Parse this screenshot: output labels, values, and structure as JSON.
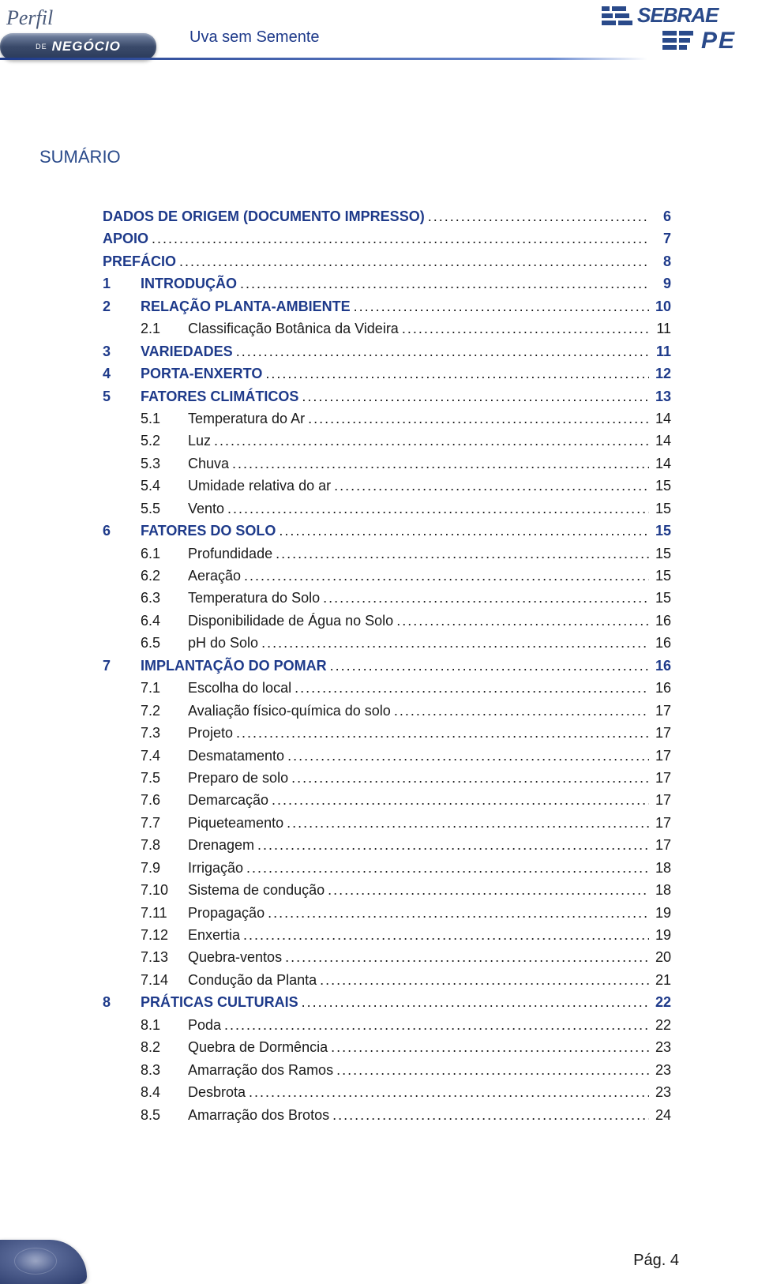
{
  "header": {
    "perfil": "Perfil",
    "de": "DE",
    "negocio": "NEGÓCIO",
    "subtitle": "Uva sem Semente",
    "sebrae": "SEBRAE",
    "pe": "PE"
  },
  "colors": {
    "brand_blue": "#1e3a8a",
    "text": "#1a1a1a",
    "badge_grad_top": "#7a8aa8",
    "badge_grad_bottom": "#2a3a5a"
  },
  "section_title": "SUMÁRIO",
  "toc": [
    {
      "level": 0,
      "num": "",
      "label": "DADOS DE ORIGEM (DOCUMENTO IMPRESSO)",
      "page": "6"
    },
    {
      "level": 0,
      "num": "",
      "label": "APOIO",
      "page": "7"
    },
    {
      "level": 0,
      "num": "",
      "label": "PREFÁCIO",
      "page": "8"
    },
    {
      "level": 1,
      "num": "1",
      "label": "INTRODUÇÃO",
      "page": "9"
    },
    {
      "level": 1,
      "num": "2",
      "label": "RELAÇÃO PLANTA-AMBIENTE",
      "page": "10"
    },
    {
      "level": 2,
      "num": "2.1",
      "label": "Classificação Botânica da Videira",
      "page": "11"
    },
    {
      "level": 1,
      "num": "3",
      "label": "VARIEDADES",
      "page": "11"
    },
    {
      "level": 1,
      "num": "4",
      "label": "PORTA-ENXERTO",
      "page": "12"
    },
    {
      "level": 1,
      "num": "5",
      "label": "FATORES CLIMÁTICOS",
      "page": "13"
    },
    {
      "level": 2,
      "num": "5.1",
      "label": "Temperatura do Ar",
      "page": "14"
    },
    {
      "level": 2,
      "num": "5.2",
      "label": "Luz",
      "page": "14"
    },
    {
      "level": 2,
      "num": "5.3",
      "label": "Chuva",
      "page": "14"
    },
    {
      "level": 2,
      "num": "5.4",
      "label": "Umidade relativa do ar",
      "page": "15"
    },
    {
      "level": 2,
      "num": "5.5",
      "label": "Vento",
      "page": "15"
    },
    {
      "level": 1,
      "num": "6",
      "label": "FATORES DO SOLO",
      "page": "15"
    },
    {
      "level": 2,
      "num": "6.1",
      "label": "Profundidade",
      "page": "15"
    },
    {
      "level": 2,
      "num": "6.2",
      "label": "Aeração",
      "page": "15"
    },
    {
      "level": 2,
      "num": "6.3",
      "label": "Temperatura do Solo",
      "page": "15"
    },
    {
      "level": 2,
      "num": "6.4",
      "label": "Disponibilidade de Água no Solo",
      "page": "16"
    },
    {
      "level": 2,
      "num": "6.5",
      "label": "pH do Solo",
      "page": "16"
    },
    {
      "level": 1,
      "num": "7",
      "label": "IMPLANTAÇÃO DO POMAR",
      "page": "16"
    },
    {
      "level": 2,
      "num": "7.1",
      "label": "Escolha do local",
      "page": "16"
    },
    {
      "level": 2,
      "num": "7.2",
      "label": "Avaliação físico-química do solo",
      "page": "17"
    },
    {
      "level": 2,
      "num": "7.3",
      "label": "Projeto",
      "page": "17"
    },
    {
      "level": 2,
      "num": "7.4",
      "label": "Desmatamento",
      "page": "17"
    },
    {
      "level": 2,
      "num": "7.5",
      "label": "Preparo de solo",
      "page": "17"
    },
    {
      "level": 2,
      "num": "7.6",
      "label": "Demarcação",
      "page": "17"
    },
    {
      "level": 2,
      "num": "7.7",
      "label": "Piqueteamento",
      "page": "17"
    },
    {
      "level": 2,
      "num": "7.8",
      "label": "Drenagem",
      "page": "17"
    },
    {
      "level": 2,
      "num": "7.9",
      "label": "Irrigação",
      "page": "18"
    },
    {
      "level": 2,
      "num": "7.10",
      "label": "Sistema de condução",
      "page": "18"
    },
    {
      "level": 2,
      "num": "7.11",
      "label": "Propagação",
      "page": "19"
    },
    {
      "level": 2,
      "num": "7.12",
      "label": "Enxertia",
      "page": "19"
    },
    {
      "level": 2,
      "num": "7.13",
      "label": "Quebra-ventos",
      "page": "20"
    },
    {
      "level": 2,
      "num": "7.14",
      "label": "Condução da Planta",
      "page": "21"
    },
    {
      "level": 1,
      "num": "8",
      "label": "PRÁTICAS CULTURAIS",
      "page": "22"
    },
    {
      "level": 2,
      "num": "8.1",
      "label": "Poda",
      "page": "22"
    },
    {
      "level": 2,
      "num": "8.2",
      "label": "Quebra de Dormência",
      "page": "23"
    },
    {
      "level": 2,
      "num": "8.3",
      "label": "Amarração dos Ramos",
      "page": "23"
    },
    {
      "level": 2,
      "num": "8.4",
      "label": "Desbrota",
      "page": "23"
    },
    {
      "level": 2,
      "num": "8.5",
      "label": "Amarração dos Brotos",
      "page": "24"
    }
  ],
  "footer": {
    "page_label": "Pág. 4"
  }
}
